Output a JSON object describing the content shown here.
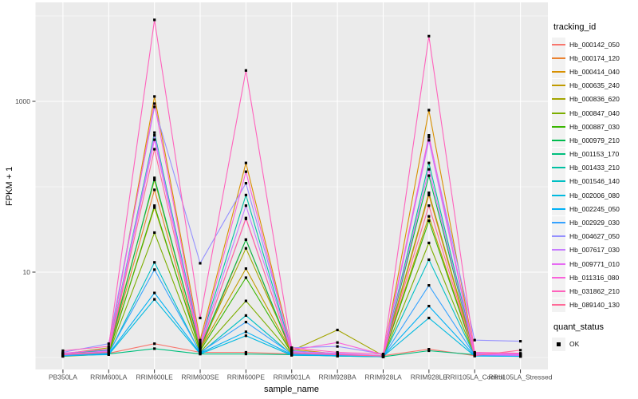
{
  "axes": {
    "ylabel": "FPKM + 1",
    "xlabel": "sample_name",
    "y_tick_labels": [
      "1000",
      "10"
    ],
    "y_tick_values": [
      1000,
      10
    ]
  },
  "legend": {
    "tracking_title": "tracking_id",
    "quant_title": "quant_status",
    "quant_items": [
      {
        "label": "OK",
        "shape": "black-square"
      }
    ]
  },
  "style": {
    "panel_bg": "#EBEBEB",
    "grid_major": "#FFFFFF",
    "grid_minor": "rgba(255,255,255,0.65)",
    "tick_color": "#333333",
    "tick_label_color": "#4D4D4D",
    "point_color": "#000000",
    "legend_key_bg": "#F2F2F2"
  },
  "chart_data": {
    "type": "line",
    "title": "",
    "xlabel": "sample_name",
    "ylabel": "FPKM + 1",
    "y_scale": "log10",
    "ylim": [
      0.72,
      13800
    ],
    "y_major_ticks": [
      10,
      1000
    ],
    "y_minor_ticks": [
      1,
      100,
      10000
    ],
    "grid": true,
    "legend_position": "right",
    "point_shape": "square",
    "x_categories": [
      "PB350LA",
      "RRIM600LA",
      "RRIM600LE",
      "RRIM600SE",
      "RRIM600PE",
      "RRIM901LA",
      "RRIM928BA",
      "RRIM928LA",
      "RRIM928LE",
      "RRII105LA_Control",
      "RRII105LA_Stressed"
    ],
    "series": [
      {
        "name": "Hb_000142_050",
        "color": "#F8766D",
        "values": [
          1.1,
          1.12,
          1.45,
          1.15,
          1.15,
          1.1,
          1.08,
          1.05,
          1.25,
          1.05,
          1.1
        ]
      },
      {
        "name": "Hb_000174_120",
        "color": "#EA8331",
        "values": [
          1.05,
          1.15,
          92,
          1.2,
          24,
          1.1,
          1.05,
          1.02,
          80,
          1.05,
          1.03
        ]
      },
      {
        "name": "Hb_000414_040",
        "color": "#D89000",
        "values": [
          1.1,
          1.2,
          1140,
          1.6,
          190,
          1.25,
          1.1,
          1.05,
          790,
          1.1,
          1.05
        ]
      },
      {
        "name": "Hb_000635_240",
        "color": "#C09B00",
        "values": [
          1.05,
          1.15,
          57,
          1.25,
          11,
          1.15,
          1.08,
          1.03,
          45,
          1.05,
          1.05
        ]
      },
      {
        "name": "Hb_000836_620",
        "color": "#A3A500",
        "values": [
          1.1,
          1.3,
          120,
          1.3,
          19,
          1.2,
          2.1,
          1.05,
          85,
          1.1,
          1.08
        ]
      },
      {
        "name": "Hb_000847_040",
        "color": "#7CAE00",
        "values": [
          1.03,
          1.1,
          29,
          1.15,
          4.6,
          1.1,
          1.05,
          1.02,
          22,
          1.05,
          1.03
        ]
      },
      {
        "name": "Hb_000887_030",
        "color": "#39B600",
        "values": [
          1.05,
          1.12,
          60,
          1.2,
          8.6,
          1.12,
          1.06,
          1.03,
          40,
          1.06,
          1.04
        ]
      },
      {
        "name": "Hb_000979_210",
        "color": "#00BB4E",
        "values": [
          1.08,
          1.18,
          127,
          1.3,
          24,
          1.15,
          1.08,
          1.04,
          135,
          1.08,
          1.05
        ]
      },
      {
        "name": "Hb_001153_170",
        "color": "#00BF7D",
        "values": [
          1.06,
          1.1,
          1.27,
          1.1,
          1.1,
          1.08,
          1.04,
          1.02,
          1.2,
          1.08,
          1.06
        ]
      },
      {
        "name": "Hb_001433_210",
        "color": "#00C1A3",
        "values": [
          1.12,
          1.22,
          430,
          1.5,
          80,
          1.2,
          1.1,
          1.05,
          190,
          1.12,
          1.08
        ]
      },
      {
        "name": "Hb_001546_140",
        "color": "#00BFC4",
        "values": [
          1.04,
          1.1,
          13,
          1.12,
          3.1,
          1.08,
          1.04,
          1.02,
          14,
          1.05,
          1.04
        ]
      },
      {
        "name": "Hb_002006_080",
        "color": "#00BAE0",
        "values": [
          1.05,
          1.08,
          4.8,
          1.1,
          1.8,
          1.06,
          1.05,
          1.03,
          2.9,
          1.04,
          1.03
        ]
      },
      {
        "name": "Hb_002245_050",
        "color": "#00B0F6",
        "values": [
          1.06,
          1.1,
          5.7,
          1.12,
          2.0,
          1.08,
          1.06,
          1.04,
          4.0,
          1.05,
          1.04
        ]
      },
      {
        "name": "Hb_002929_030",
        "color": "#35A2FF",
        "values": [
          1.05,
          1.12,
          10.7,
          1.15,
          2.6,
          1.1,
          1.07,
          1.03,
          7.0,
          1.06,
          1.05
        ]
      },
      {
        "name": "Hb_004627_050",
        "color": "#9590FF",
        "values": [
          1.15,
          1.45,
          860,
          12.7,
          110,
          1.3,
          1.35,
          1.1,
          380,
          1.6,
          1.55
        ]
      },
      {
        "name": "Hb_007617_030",
        "color": "#C77CFF",
        "values": [
          1.08,
          1.2,
          400,
          1.4,
          60,
          1.18,
          1.12,
          1.05,
          350,
          1.1,
          1.08
        ]
      },
      {
        "name": "Hb_009771_010",
        "color": "#E76BF3",
        "values": [
          1.1,
          1.18,
          355,
          1.35,
          42,
          1.15,
          1.1,
          1.04,
          160,
          1.08,
          1.06
        ]
      },
      {
        "name": "Hb_011316_080",
        "color": "#FA62DB",
        "values": [
          1.12,
          1.25,
          940,
          1.45,
          150,
          1.22,
          1.5,
          1.08,
          400,
          1.12,
          1.1
        ]
      },
      {
        "name": "Hb_031862_210",
        "color": "#FF62BC",
        "values": [
          1.2,
          1.35,
          9000,
          2.9,
          2300,
          1.3,
          1.15,
          1.1,
          5800,
          1.15,
          1.12
        ]
      },
      {
        "name": "Hb_089140_130",
        "color": "#FF6A98",
        "values": [
          1.08,
          1.15,
          275,
          1.3,
          43,
          1.12,
          1.08,
          1.04,
          60,
          1.05,
          1.22
        ]
      }
    ]
  }
}
